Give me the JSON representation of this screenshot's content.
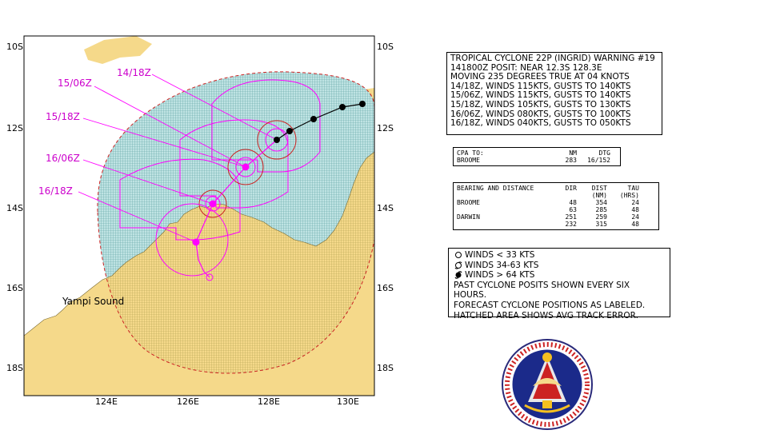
{
  "map": {
    "lat_labels": [
      "10S",
      "12S",
      "14S",
      "16S",
      "18S"
    ],
    "lon_labels": [
      "124E",
      "126E",
      "128E",
      "130E"
    ],
    "forecast_labels": [
      "14/18Z",
      "15/06Z",
      "15/18Z",
      "16/06Z",
      "16/18Z"
    ],
    "place_label": "Yampi Sound",
    "colors": {
      "land": "#f5d98a",
      "water": "#ffffff",
      "hatch_track": "#4a9a9a",
      "hatch_land": "#9a8a40",
      "forecast": "#ff00ff",
      "past_track": "#000000",
      "error_boundary": "#cc2222",
      "wind_34": "#cc2222"
    }
  },
  "warning": {
    "lines": [
      "TROPICAL CYCLONE 22P (INGRID) WARNING #19",
      "141800Z POSIT: NEAR 12.3S 128.3E",
      "MOVING 235 DEGREES TRUE AT 04 KNOTS",
      "14/18Z, WINDS 115KTS, GUSTS TO 140KTS",
      "15/06Z, WINDS 115KTS, GUSTS TO 140KTS",
      "15/18Z, WINDS 105KTS, GUSTS TO 130KTS",
      "16/06Z, WINDS 080KTS, GUSTS TO 100KTS",
      "16/18Z, WINDS 040KTS, GUSTS TO 050KTS"
    ]
  },
  "cpa": {
    "header": {
      "label": "CPA TO:",
      "nm": "NM",
      "dtg": "DTG"
    },
    "row": {
      "place": "BROOME",
      "nm": "283",
      "dtg": "16/152"
    }
  },
  "bearing": {
    "title": "BEARING AND DISTANCE",
    "col_dir": "DIR",
    "col_dist": "DIST",
    "col_tau": "TAU",
    "col_dist_unit": "(NM)",
    "col_tau_unit": "(HRS)",
    "rows": [
      {
        "place": "BROOME",
        "dir": "48",
        "dist": "354",
        "tau": "24"
      },
      {
        "place": "",
        "dir": "63",
        "dist": "285",
        "tau": "48"
      },
      {
        "place": "DARWIN",
        "dir": "251",
        "dist": "259",
        "tau": "24"
      },
      {
        "place": "",
        "dir": "232",
        "dist": "315",
        "tau": "48"
      }
    ]
  },
  "legend": {
    "wind_lt33": "WINDS < 33 KTS",
    "wind_34_63": "WINDS 34-63  KTS",
    "wind_gt64": "WINDS > 64 KTS",
    "note1": "PAST CYCLONE POSITS SHOWN EVERY SIX HOURS.",
    "note2": "FORECAST CYCLONE POSITIONS AS LABELED.",
    "note3": "HATCHED AREA SHOWS AVG TRACK ERROR."
  }
}
